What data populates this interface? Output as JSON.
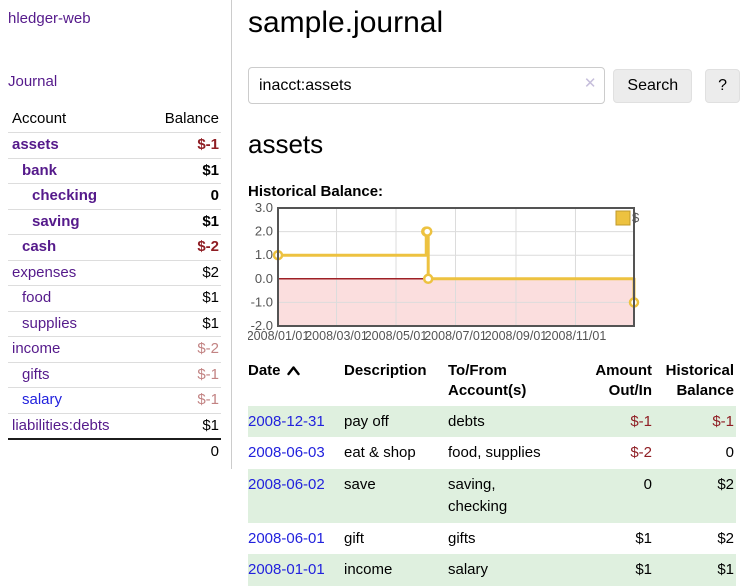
{
  "sidebar": {
    "app_title": "hledger-web",
    "journal_label": "Journal",
    "accounts_table": {
      "headers": {
        "account": "Account",
        "balance": "Balance"
      },
      "rows": [
        {
          "name": "assets",
          "balance": "$-1",
          "indent": 1,
          "bold": true
        },
        {
          "name": "bank",
          "balance": "$1",
          "indent": 2,
          "bold": true
        },
        {
          "name": "checking",
          "balance": "0",
          "indent": 3,
          "bold": true
        },
        {
          "name": "saving",
          "balance": "$1",
          "indent": 3,
          "bold": true
        },
        {
          "name": "cash",
          "balance": "$-2",
          "indent": 2,
          "bold": true
        },
        {
          "name": "expenses",
          "balance": "$2",
          "indent": 1,
          "bold": false
        },
        {
          "name": "food",
          "balance": "$1",
          "indent": 2,
          "bold": false
        },
        {
          "name": "supplies",
          "balance": "$1",
          "indent": 2,
          "bold": false
        },
        {
          "name": "income",
          "balance": "$-2",
          "indent": 1,
          "bold": false
        },
        {
          "name": "gifts",
          "balance": "$-1",
          "indent": 2,
          "bold": false
        },
        {
          "name": "salary",
          "balance": "$-1",
          "indent": 2,
          "bold": false,
          "unvisited": true
        },
        {
          "name": "liabilities:debts",
          "balance": "$1",
          "indent": 1,
          "bold": false
        }
      ],
      "total": "0"
    }
  },
  "main": {
    "title": "sample.journal",
    "search": {
      "value": "inacct:assets",
      "clear_icon": "✕",
      "button_label": "Search",
      "help_label": "?"
    },
    "account_heading": "assets",
    "register": {
      "columns": {
        "date": "Date",
        "description": "Description",
        "accounts": "To/From Account(s)",
        "amount": "Amount Out/In",
        "balance": "Historical Balance"
      },
      "rows": [
        {
          "date": "2008-12-31",
          "description": "pay off",
          "accounts": "debts",
          "amount": "$-1",
          "balance": "$-1"
        },
        {
          "date": "2008-06-03",
          "description": "eat & shop",
          "accounts": "food, supplies",
          "amount": "$-2",
          "balance": "0"
        },
        {
          "date": "2008-06-02",
          "description": "save",
          "accounts": "saving,\nchecking",
          "amount": "0",
          "balance": "$2"
        },
        {
          "date": "2008-06-01",
          "description": "gift",
          "accounts": "gifts",
          "amount": "$1",
          "balance": "$2"
        },
        {
          "date": "2008-01-01",
          "description": "income",
          "accounts": "salary",
          "amount": "$1",
          "balance": "$1"
        }
      ]
    }
  },
  "chart_data": {
    "type": "line",
    "step": true,
    "title": "Historical Balance:",
    "series": [
      {
        "name": "$",
        "color": "#edc240",
        "points": [
          {
            "date": "2008-01-01",
            "day": 0,
            "value": 1
          },
          {
            "date": "2008-06-01",
            "day": 152,
            "value": 2
          },
          {
            "date": "2008-06-02",
            "day": 153,
            "value": 2
          },
          {
            "date": "2008-06-03",
            "day": 154,
            "value": 0
          },
          {
            "date": "2008-12-31",
            "day": 365,
            "value": -1
          }
        ]
      }
    ],
    "x_ticks": [
      {
        "label": "2008/01/01",
        "day": 0
      },
      {
        "label": "2008/03/01",
        "day": 60
      },
      {
        "label": "2008/05/01",
        "day": 121
      },
      {
        "label": "2008/07/01",
        "day": 182
      },
      {
        "label": "2008/09/01",
        "day": 244
      },
      {
        "label": "2008/11/01",
        "day": 305
      }
    ],
    "y_ticks": [
      {
        "label": "3.0",
        "value": 3
      },
      {
        "label": "2.0",
        "value": 2
      },
      {
        "label": "1.0",
        "value": 1
      },
      {
        "label": "0.0",
        "value": 0
      },
      {
        "label": "-1.0",
        "value": -1
      },
      {
        "label": "-2.0",
        "value": -2
      }
    ],
    "xlim_days": [
      0,
      365
    ],
    "ylim": [
      -2,
      3
    ],
    "grid": true,
    "legend": {
      "label": "$",
      "position": "top-right"
    },
    "colors": {
      "negative_region": "#fbdede",
      "zero_line": "#9e2026",
      "border": "#545454",
      "grid": "#dcdcdc",
      "tick_text": "#545454",
      "marker_fill": "#ffffff",
      "legend_box_border": "#c0992b"
    }
  },
  "colors": {
    "link_purple": "#551a8b",
    "link_blue": "#2222dd",
    "negative_strong": "#8f1e24",
    "negative_muted": "#c28383",
    "row_green": "#dff0df"
  }
}
